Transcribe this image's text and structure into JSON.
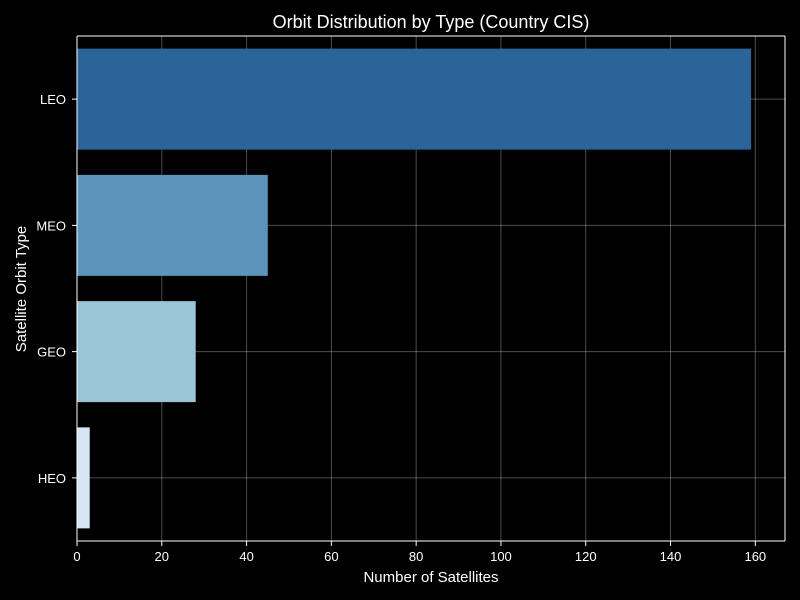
{
  "chart_data": {
    "type": "bar",
    "orientation": "horizontal",
    "title": "Orbit Distribution by Type (Country CIS)",
    "xlabel": "Number of Satellites",
    "ylabel": "Satellite Orbit Type",
    "categories": [
      "LEO",
      "MEO",
      "GEO",
      "HEO"
    ],
    "values": [
      159,
      45,
      28,
      3
    ],
    "bar_colors": [
      "#2a6499",
      "#5b95bb",
      "#9cc4d9",
      "#d6e6f4"
    ],
    "xlim": [
      0,
      167
    ],
    "xticks": [
      0,
      20,
      40,
      60,
      80,
      100,
      120,
      140,
      160
    ],
    "grid": true,
    "background": "#000000",
    "axis_color": "#ffffff",
    "grid_color": "#ffffff"
  }
}
